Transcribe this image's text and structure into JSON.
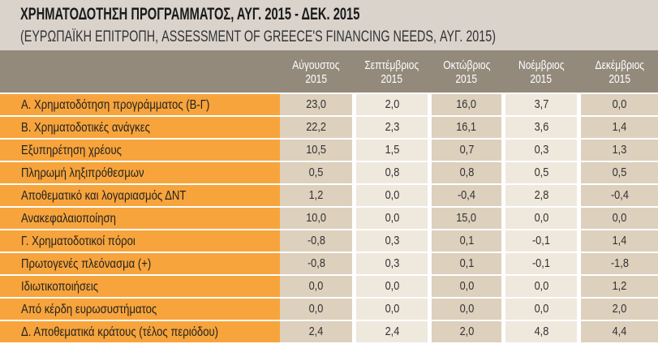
{
  "title": "ΧΡΗΜΑΤΟΔΟΤΗΣΗ ΠΡΟΓΡΑΜΜΑΤΟΣ, ΑΥΓ. 2015 - ΔΕΚ. 2015",
  "subtitle": "(ΕΥΡΩΠΑΪΚΗ ΕΠΙΤΡΟΠΗ, ASSESSMENT OF GREECE'S FINANCING NEEDS, ΑΥΓ. 2015)",
  "columns": [
    {
      "month": "Αύγουστος",
      "year": "2015"
    },
    {
      "month": "Σεπτέμβριος",
      "year": "2015"
    },
    {
      "month": "Οκτώβριος",
      "year": "2015"
    },
    {
      "month": "Νοέμβριος",
      "year": "2015"
    },
    {
      "month": "Δεκέμβριος",
      "year": "2015"
    }
  ],
  "rows": [
    {
      "label": "Α. Χρηματοδότηση προγράμματος (Β-Γ)",
      "values": [
        "23,0",
        "2,0",
        "16,0",
        "3,7",
        "0,0"
      ]
    },
    {
      "label": "Β. Χρηματοδοτικές ανάγκες",
      "values": [
        "22,2",
        "2,3",
        "16,1",
        "3,6",
        "1,4"
      ]
    },
    {
      "label": "Εξυπηρέτηση χρέους",
      "values": [
        "10,5",
        "1,5",
        "0,7",
        "0,3",
        "1,3"
      ]
    },
    {
      "label": "Πληρωμή ληξιπρόθεσμων",
      "values": [
        "0,5",
        "0,8",
        "0,8",
        "0,5",
        "0,5"
      ]
    },
    {
      "label": "Αποθεματικό και λογαριασμός ΔΝΤ",
      "values": [
        "1,2",
        "0,0",
        "-0,4",
        "2,8",
        "-0,4"
      ]
    },
    {
      "label": "Ανακεφαλαιοποίηση",
      "values": [
        "10,0",
        "0,0",
        "15,0",
        "0,0",
        "0,0"
      ]
    },
    {
      "label": "Γ. Χρηματοδοτικοί πόροι",
      "values": [
        "-0,8",
        "0,3",
        "0,1",
        "-0,1",
        "1,4"
      ]
    },
    {
      "label": "Πρωτογενές πλεόνασμα (+)",
      "values": [
        "-0,8",
        "0,3",
        "0,1",
        "-0,1",
        "-1,8"
      ]
    },
    {
      "label": "Ιδιωτικοποιήσεις",
      "values": [
        "0,0",
        "0,0",
        "0,0",
        "0,0",
        "1,2"
      ]
    },
    {
      "label": "Από κέρδη ευρωσυστήματος",
      "values": [
        "0,0",
        "0,0",
        "0,0",
        "0,0",
        "2,0"
      ]
    },
    {
      "label": "Δ. Αποθεματικά κράτους (τέλος περιόδου)",
      "values": [
        "2,4",
        "2,4",
        "2,0",
        "4,8",
        "4,4"
      ]
    }
  ]
}
